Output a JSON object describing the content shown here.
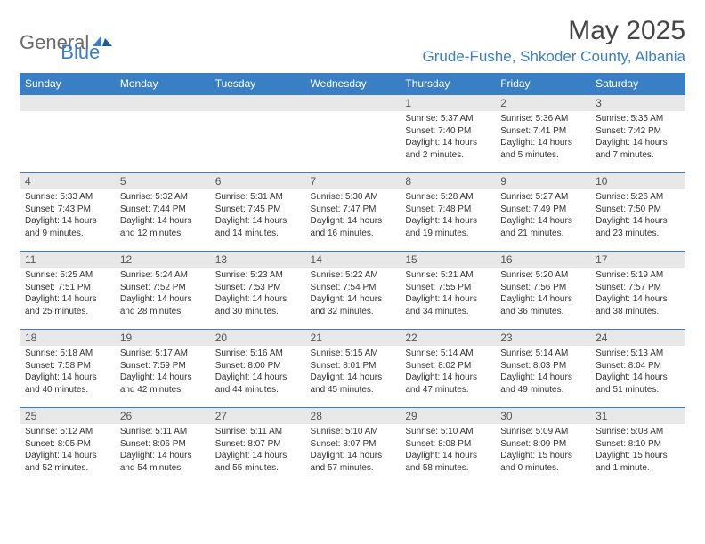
{
  "logo": {
    "word1": "General",
    "word2": "Blue"
  },
  "title": "May 2025",
  "location": "Grude-Fushe, Shkoder County, Albania",
  "headers": [
    "Sunday",
    "Monday",
    "Tuesday",
    "Wednesday",
    "Thursday",
    "Friday",
    "Saturday"
  ],
  "colors": {
    "accent": "#3a7fc4",
    "header_bg": "#3a7fc4",
    "header_text": "#ffffff",
    "daynum_bg": "#e8e8e8",
    "border": "#3a7fc4",
    "text": "#333333",
    "title_text": "#444444",
    "logo_gray": "#6b6b6b"
  },
  "layout": {
    "columns": 7,
    "rows": 5,
    "first_day_column": 4
  },
  "days": [
    {
      "n": 1,
      "sunrise": "5:37 AM",
      "sunset": "7:40 PM",
      "daylight": "14 hours and 2 minutes."
    },
    {
      "n": 2,
      "sunrise": "5:36 AM",
      "sunset": "7:41 PM",
      "daylight": "14 hours and 5 minutes."
    },
    {
      "n": 3,
      "sunrise": "5:35 AM",
      "sunset": "7:42 PM",
      "daylight": "14 hours and 7 minutes."
    },
    {
      "n": 4,
      "sunrise": "5:33 AM",
      "sunset": "7:43 PM",
      "daylight": "14 hours and 9 minutes."
    },
    {
      "n": 5,
      "sunrise": "5:32 AM",
      "sunset": "7:44 PM",
      "daylight": "14 hours and 12 minutes."
    },
    {
      "n": 6,
      "sunrise": "5:31 AM",
      "sunset": "7:45 PM",
      "daylight": "14 hours and 14 minutes."
    },
    {
      "n": 7,
      "sunrise": "5:30 AM",
      "sunset": "7:47 PM",
      "daylight": "14 hours and 16 minutes."
    },
    {
      "n": 8,
      "sunrise": "5:28 AM",
      "sunset": "7:48 PM",
      "daylight": "14 hours and 19 minutes."
    },
    {
      "n": 9,
      "sunrise": "5:27 AM",
      "sunset": "7:49 PM",
      "daylight": "14 hours and 21 minutes."
    },
    {
      "n": 10,
      "sunrise": "5:26 AM",
      "sunset": "7:50 PM",
      "daylight": "14 hours and 23 minutes."
    },
    {
      "n": 11,
      "sunrise": "5:25 AM",
      "sunset": "7:51 PM",
      "daylight": "14 hours and 25 minutes."
    },
    {
      "n": 12,
      "sunrise": "5:24 AM",
      "sunset": "7:52 PM",
      "daylight": "14 hours and 28 minutes."
    },
    {
      "n": 13,
      "sunrise": "5:23 AM",
      "sunset": "7:53 PM",
      "daylight": "14 hours and 30 minutes."
    },
    {
      "n": 14,
      "sunrise": "5:22 AM",
      "sunset": "7:54 PM",
      "daylight": "14 hours and 32 minutes."
    },
    {
      "n": 15,
      "sunrise": "5:21 AM",
      "sunset": "7:55 PM",
      "daylight": "14 hours and 34 minutes."
    },
    {
      "n": 16,
      "sunrise": "5:20 AM",
      "sunset": "7:56 PM",
      "daylight": "14 hours and 36 minutes."
    },
    {
      "n": 17,
      "sunrise": "5:19 AM",
      "sunset": "7:57 PM",
      "daylight": "14 hours and 38 minutes."
    },
    {
      "n": 18,
      "sunrise": "5:18 AM",
      "sunset": "7:58 PM",
      "daylight": "14 hours and 40 minutes."
    },
    {
      "n": 19,
      "sunrise": "5:17 AM",
      "sunset": "7:59 PM",
      "daylight": "14 hours and 42 minutes."
    },
    {
      "n": 20,
      "sunrise": "5:16 AM",
      "sunset": "8:00 PM",
      "daylight": "14 hours and 44 minutes."
    },
    {
      "n": 21,
      "sunrise": "5:15 AM",
      "sunset": "8:01 PM",
      "daylight": "14 hours and 45 minutes."
    },
    {
      "n": 22,
      "sunrise": "5:14 AM",
      "sunset": "8:02 PM",
      "daylight": "14 hours and 47 minutes."
    },
    {
      "n": 23,
      "sunrise": "5:14 AM",
      "sunset": "8:03 PM",
      "daylight": "14 hours and 49 minutes."
    },
    {
      "n": 24,
      "sunrise": "5:13 AM",
      "sunset": "8:04 PM",
      "daylight": "14 hours and 51 minutes."
    },
    {
      "n": 25,
      "sunrise": "5:12 AM",
      "sunset": "8:05 PM",
      "daylight": "14 hours and 52 minutes."
    },
    {
      "n": 26,
      "sunrise": "5:11 AM",
      "sunset": "8:06 PM",
      "daylight": "14 hours and 54 minutes."
    },
    {
      "n": 27,
      "sunrise": "5:11 AM",
      "sunset": "8:07 PM",
      "daylight": "14 hours and 55 minutes."
    },
    {
      "n": 28,
      "sunrise": "5:10 AM",
      "sunset": "8:07 PM",
      "daylight": "14 hours and 57 minutes."
    },
    {
      "n": 29,
      "sunrise": "5:10 AM",
      "sunset": "8:08 PM",
      "daylight": "14 hours and 58 minutes."
    },
    {
      "n": 30,
      "sunrise": "5:09 AM",
      "sunset": "8:09 PM",
      "daylight": "15 hours and 0 minutes."
    },
    {
      "n": 31,
      "sunrise": "5:08 AM",
      "sunset": "8:10 PM",
      "daylight": "15 hours and 1 minute."
    }
  ],
  "labels": {
    "sunrise": "Sunrise:",
    "sunset": "Sunset:",
    "daylight": "Daylight:"
  }
}
